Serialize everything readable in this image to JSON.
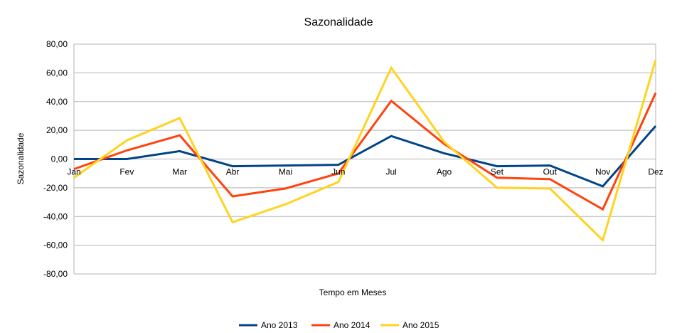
{
  "chart_data": {
    "type": "line",
    "title": "Sazonalidade",
    "xlabel": "Tempo em Meses",
    "ylabel": "Sazonalidade",
    "categories": [
      "Jan",
      "Fev",
      "Mar",
      "Abr",
      "Mai",
      "Jun",
      "Jul",
      "Ago",
      "Set",
      "Out",
      "Nov",
      "Dez"
    ],
    "ylim": [
      -80,
      80
    ],
    "yticks": [
      80,
      60,
      40,
      20,
      0,
      -20,
      -40,
      -60,
      -80
    ],
    "ytick_labels": [
      "80,00",
      "60,00",
      "40,00",
      "20,00",
      "0,00",
      "-20,00",
      "-40,00",
      "-60,00",
      "-80,00"
    ],
    "grid": "horizontal",
    "legend_position": "bottom",
    "series": [
      {
        "name": "Ano 2013",
        "color": "#004586",
        "values": [
          0,
          0,
          5.5,
          -5,
          -4.5,
          -4,
          16,
          4,
          -5,
          -4.5,
          -19,
          23
        ]
      },
      {
        "name": "Ano 2014",
        "color": "#ff420e",
        "values": [
          -7,
          6,
          16.5,
          -26,
          -20.5,
          -10,
          40.5,
          10.5,
          -13,
          -14,
          -35,
          46
        ]
      },
      {
        "name": "Ano 2015",
        "color": "#ffd320",
        "values": [
          -13,
          13,
          28.5,
          -44,
          -31.5,
          -16,
          63.5,
          12,
          -20,
          -20.5,
          -56.5,
          69
        ]
      }
    ]
  }
}
